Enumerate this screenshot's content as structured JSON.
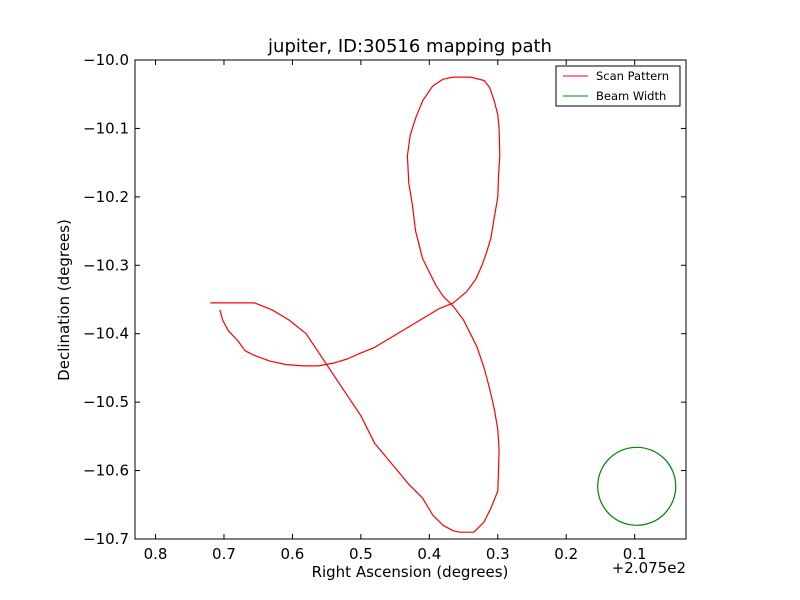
{
  "chart_data": {
    "type": "line",
    "title": "jupiter, ID:30516 mapping path",
    "xlabel": "Right Ascension (degrees)",
    "ylabel": "Declination (degrees)",
    "x_offset_label": "+2.075e2",
    "x_ticks": [
      "0.8",
      "0.7",
      "0.6",
      "0.5",
      "0.4",
      "0.3",
      "0.2",
      "0.1"
    ],
    "x_tick_values": [
      0.8,
      0.7,
      0.6,
      0.5,
      0.4,
      0.3,
      0.2,
      0.1
    ],
    "y_ticks": [
      "−10.0",
      "−10.1",
      "−10.2",
      "−10.3",
      "−10.4",
      "−10.5",
      "−10.6",
      "−10.7"
    ],
    "y_tick_values": [
      -10.0,
      -10.1,
      -10.2,
      -10.3,
      -10.4,
      -10.5,
      -10.6,
      -10.7
    ],
    "xlim": [
      0.83,
      0.025
    ],
    "ylim": [
      -10.7,
      -10.0
    ],
    "x_inverted": true,
    "grid": false,
    "legend_position": "top-right",
    "series": [
      {
        "name": "Scan Pattern",
        "color": "#ff0000",
        "x": [
          0.706,
          0.702,
          0.694,
          0.68,
          0.669,
          0.655,
          0.633,
          0.61,
          0.585,
          0.562,
          0.54,
          0.52,
          0.5,
          0.48,
          0.455,
          0.43,
          0.405,
          0.385,
          0.365,
          0.345,
          0.332,
          0.323,
          0.316,
          0.31,
          0.305,
          0.3,
          0.299,
          0.297,
          0.298,
          0.3,
          0.305,
          0.312,
          0.32,
          0.34,
          0.355,
          0.365,
          0.38,
          0.395,
          0.41,
          0.42,
          0.428,
          0.432,
          0.431,
          0.43,
          0.425,
          0.42,
          0.415,
          0.41,
          0.4,
          0.39,
          0.38,
          0.365,
          0.35,
          0.34,
          0.33,
          0.32,
          0.312,
          0.305,
          0.3,
          0.298,
          0.299,
          0.3,
          0.31,
          0.32,
          0.335,
          0.345,
          0.355,
          0.365,
          0.38,
          0.395,
          0.41,
          0.43,
          0.455,
          0.48,
          0.5,
          0.52,
          0.54,
          0.56,
          0.58,
          0.605,
          0.63,
          0.655,
          0.677,
          0.692,
          0.701,
          0.71,
          0.72
        ],
        "y": [
          -10.365,
          -10.38,
          -10.395,
          -10.41,
          -10.425,
          -10.432,
          -10.44,
          -10.445,
          -10.447,
          -10.447,
          -10.443,
          -10.437,
          -10.428,
          -10.42,
          -10.405,
          -10.39,
          -10.375,
          -10.363,
          -10.355,
          -10.338,
          -10.32,
          -10.3,
          -10.28,
          -10.26,
          -10.23,
          -10.2,
          -10.17,
          -10.14,
          -10.1,
          -10.08,
          -10.06,
          -10.04,
          -10.03,
          -10.025,
          -10.025,
          -10.025,
          -10.028,
          -10.038,
          -10.06,
          -10.085,
          -10.11,
          -10.14,
          -10.16,
          -10.18,
          -10.21,
          -10.25,
          -10.27,
          -10.29,
          -10.31,
          -10.33,
          -10.345,
          -10.36,
          -10.38,
          -10.4,
          -10.42,
          -10.45,
          -10.48,
          -10.51,
          -10.54,
          -10.57,
          -10.6,
          -10.63,
          -10.655,
          -10.675,
          -10.69,
          -10.69,
          -10.69,
          -10.688,
          -10.68,
          -10.665,
          -10.64,
          -10.62,
          -10.59,
          -10.56,
          -10.52,
          -10.49,
          -10.46,
          -10.43,
          -10.4,
          -10.38,
          -10.365,
          -10.355,
          -10.355,
          -10.355,
          -10.355,
          -10.355,
          -10.355
        ]
      },
      {
        "name": "Beam Width",
        "color": "#008000",
        "center": [
          0.097,
          -10.623
        ],
        "radius": 0.057
      }
    ]
  }
}
